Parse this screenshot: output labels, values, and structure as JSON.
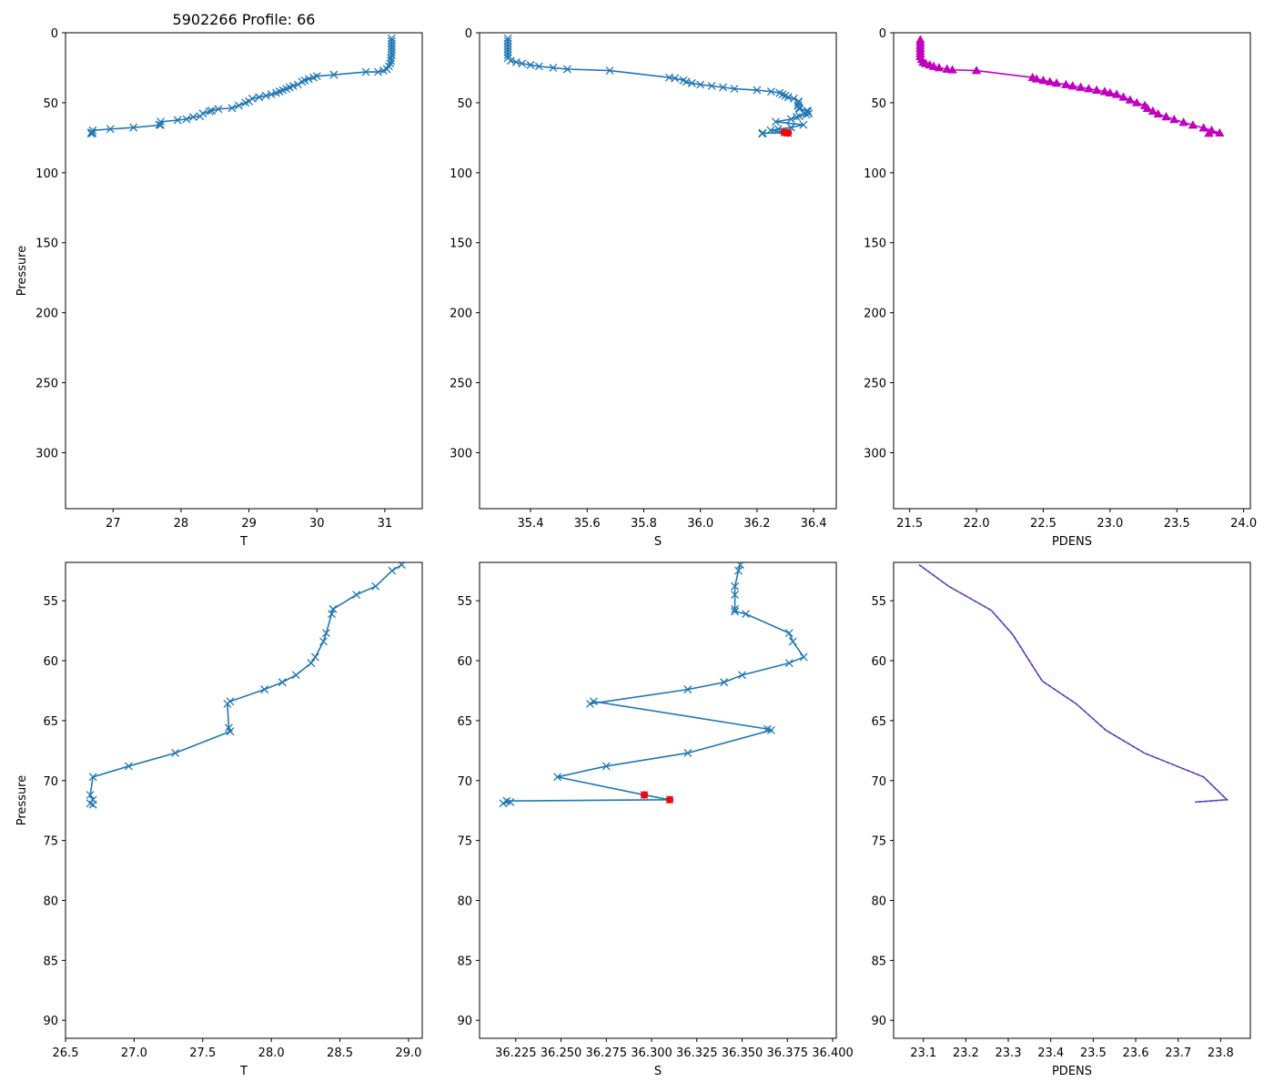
{
  "title": "5902266 Profile: 66",
  "colors": {
    "line": "#1f77b4",
    "pdens": "#bf00bf",
    "flag": "#ff0000"
  },
  "chart_data": [
    {
      "type": "line",
      "panel": "top-left",
      "title": "5902266 Profile: 66",
      "xlabel": "T",
      "ylabel": "Pressure",
      "xlim": [
        26.3,
        31.55
      ],
      "ylim": [
        340,
        0
      ],
      "x_ticks": [
        27,
        28,
        29,
        30,
        31
      ],
      "y_ticks": [
        0,
        50,
        100,
        150,
        200,
        250,
        300
      ],
      "marker": "x",
      "x": [
        31.1,
        31.1,
        31.1,
        31.1,
        31.1,
        31.1,
        31.1,
        31.09,
        31.09,
        31.08,
        31.06,
        31.03,
        30.98,
        30.9,
        30.72,
        30.25,
        30.0,
        29.95,
        29.88,
        29.82,
        29.78,
        29.72,
        29.65,
        29.6,
        29.55,
        29.5,
        29.45,
        29.4,
        29.33,
        29.25,
        29.15,
        29.05,
        29.0,
        28.95,
        28.85,
        28.75,
        28.55,
        28.45,
        28.42,
        28.32,
        28.28,
        28.18,
        28.08,
        27.95,
        27.7,
        27.68,
        27.7,
        27.3,
        26.96,
        26.7,
        26.68,
        26.7,
        26.68
      ],
      "y": [
        4,
        6,
        8,
        10,
        12,
        14,
        16,
        18,
        20,
        22,
        24,
        26,
        27,
        28,
        28,
        30,
        31,
        32,
        33,
        34,
        35,
        37,
        38,
        39,
        40,
        41,
        42,
        43,
        44,
        45,
        46,
        47,
        49,
        50,
        52,
        53.8,
        54.5,
        55.7,
        56.1,
        57.7,
        59.7,
        60.2,
        61.7,
        62.4,
        63.6,
        65.7,
        65.9,
        67.7,
        68.8,
        69.7,
        71.2,
        71.6,
        72
      ]
    },
    {
      "type": "line",
      "panel": "top-middle",
      "xlabel": "S",
      "ylabel": "",
      "xlim": [
        35.22,
        36.48
      ],
      "ylim": [
        340,
        0
      ],
      "x_ticks": [
        35.4,
        35.6,
        35.8,
        36.0,
        36.2,
        36.4
      ],
      "y_ticks": [
        0,
        50,
        100,
        150,
        200,
        250,
        300
      ],
      "marker": "x",
      "x": [
        35.32,
        35.32,
        35.32,
        35.32,
        35.32,
        35.32,
        35.32,
        35.32,
        35.33,
        35.35,
        35.37,
        35.4,
        35.43,
        35.48,
        35.53,
        35.68,
        35.89,
        35.91,
        35.94,
        35.95,
        35.97,
        36.0,
        36.04,
        36.08,
        36.12,
        36.2,
        36.25,
        36.28,
        36.29,
        36.3,
        36.31,
        36.33,
        36.347,
        36.345,
        36.345,
        36.345,
        36.349,
        36.35,
        36.376,
        36.38,
        36.383,
        36.375,
        36.35,
        36.34,
        36.32,
        36.266,
        36.364,
        36.32,
        36.275,
        36.248,
        36.296,
        36.31,
        36.22,
        36.22,
        36.218
      ],
      "y": [
        4,
        6,
        8,
        10,
        12,
        14,
        16,
        18,
        20,
        21,
        22,
        23,
        24,
        25,
        26,
        27,
        32,
        32.5,
        34,
        35,
        36,
        37,
        38,
        39,
        40,
        41,
        42,
        43,
        44,
        45,
        46,
        47,
        49,
        50,
        51.8,
        52.3,
        53.8,
        54.5,
        55.7,
        56.1,
        57.7,
        58.4,
        59.7,
        60.2,
        61.7,
        63.6,
        65.8,
        67.7,
        68.8,
        69.7,
        71.2,
        71.6,
        71.6,
        71.9,
        72
      ],
      "flag_points": {
        "x": [
          36.296,
          36.31
        ],
        "y": [
          71.2,
          71.6
        ]
      }
    },
    {
      "type": "line",
      "panel": "top-right",
      "xlabel": "PDENS",
      "ylabel": "",
      "xlim": [
        21.38,
        24.05
      ],
      "ylim": [
        340,
        0
      ],
      "x_ticks": [
        21.5,
        22.0,
        22.5,
        23.0,
        23.5,
        24.0
      ],
      "y_ticks": [
        0,
        50,
        100,
        150,
        200,
        250,
        300
      ],
      "marker": "^",
      "x": [
        21.58,
        21.58,
        21.58,
        21.58,
        21.58,
        21.58,
        21.58,
        21.59,
        21.6,
        21.62,
        21.65,
        21.68,
        21.72,
        21.78,
        21.82,
        22.0,
        22.42,
        22.45,
        22.5,
        22.55,
        22.6,
        22.67,
        22.72,
        22.78,
        22.84,
        22.9,
        22.96,
        23.0,
        23.05,
        23.1,
        23.15,
        23.2,
        23.26,
        23.28,
        23.32,
        23.36,
        23.42,
        23.48,
        23.55,
        23.62,
        23.7,
        23.76,
        23.82,
        23.74
      ],
      "y": [
        5,
        7,
        9,
        11,
        13,
        15,
        17,
        19,
        21,
        22,
        23,
        24,
        25,
        26,
        26.5,
        27,
        32,
        33,
        34,
        35,
        36,
        37,
        38,
        39,
        40,
        41,
        42,
        43,
        44,
        46,
        48,
        50,
        52,
        54,
        56,
        58,
        60,
        62,
        64,
        66,
        68,
        69.7,
        71.6,
        71.8
      ]
    },
    {
      "type": "line",
      "panel": "bottom-left",
      "xlabel": "T",
      "ylabel": "Pressure",
      "xlim": [
        26.5,
        29.1
      ],
      "ylim": [
        91.5,
        51.8
      ],
      "x_ticks": [
        26.5,
        27.0,
        27.5,
        28.0,
        28.5,
        29.0
      ],
      "y_ticks": [
        55,
        60,
        65,
        70,
        75,
        80,
        85,
        90
      ],
      "marker": "x",
      "x": [
        28.95,
        28.88,
        28.76,
        28.62,
        28.45,
        28.44,
        28.4,
        28.38,
        28.32,
        28.29,
        28.18,
        28.08,
        27.95,
        27.7,
        27.68,
        27.69,
        27.7,
        27.3,
        26.96,
        26.7,
        26.68,
        26.7,
        26.68,
        26.7
      ],
      "y": [
        52.0,
        52.5,
        53.8,
        54.5,
        55.7,
        56.1,
        57.7,
        58.4,
        59.7,
        60.2,
        61.2,
        61.8,
        62.4,
        63.4,
        63.6,
        65.6,
        65.9,
        67.7,
        68.8,
        69.7,
        71.2,
        71.6,
        71.9,
        72.0
      ]
    },
    {
      "type": "line",
      "panel": "bottom-middle",
      "xlabel": "S",
      "ylabel": "",
      "xlim": [
        36.205,
        36.402
      ],
      "ylim": [
        91.5,
        51.8
      ],
      "x_ticks": [
        36.225,
        36.25,
        36.275,
        36.3,
        36.325,
        36.35,
        36.375,
        36.4
      ],
      "y_ticks": [
        55,
        60,
        65,
        70,
        75,
        80,
        85,
        90
      ],
      "marker": "x",
      "x": [
        36.349,
        36.348,
        36.346,
        36.346,
        36.346,
        36.346,
        36.352,
        36.376,
        36.378,
        36.384,
        36.376,
        36.35,
        36.34,
        36.32,
        36.266,
        36.268,
        36.364,
        36.366,
        36.32,
        36.275,
        36.248,
        36.296,
        36.31,
        36.22,
        36.218,
        36.222
      ],
      "y": [
        52.0,
        52.5,
        53.8,
        54.5,
        55.7,
        55.9,
        56.1,
        57.7,
        58.4,
        59.7,
        60.2,
        61.2,
        61.8,
        62.4,
        63.6,
        63.4,
        65.7,
        65.8,
        67.7,
        68.8,
        69.7,
        71.2,
        71.6,
        71.7,
        71.9,
        71.8
      ],
      "flag_points": {
        "x": [
          36.296,
          36.31
        ],
        "y": [
          71.2,
          71.6
        ]
      }
    },
    {
      "type": "line",
      "panel": "bottom-right",
      "xlabel": "PDENS",
      "ylabel": "",
      "xlim": [
        23.03,
        23.87
      ],
      "ylim": [
        91.5,
        51.8
      ],
      "x_ticks": [
        23.1,
        23.2,
        23.3,
        23.4,
        23.5,
        23.6,
        23.7,
        23.8
      ],
      "y_ticks": [
        55,
        60,
        65,
        70,
        75,
        80,
        85,
        90
      ],
      "marker": "none",
      "x": [
        23.09,
        23.16,
        23.26,
        23.31,
        23.38,
        23.46,
        23.53,
        23.62,
        23.76,
        23.815,
        23.74
      ],
      "y": [
        52.0,
        53.8,
        55.8,
        57.8,
        61.7,
        63.6,
        65.8,
        67.7,
        69.7,
        71.6,
        71.8
      ]
    }
  ]
}
